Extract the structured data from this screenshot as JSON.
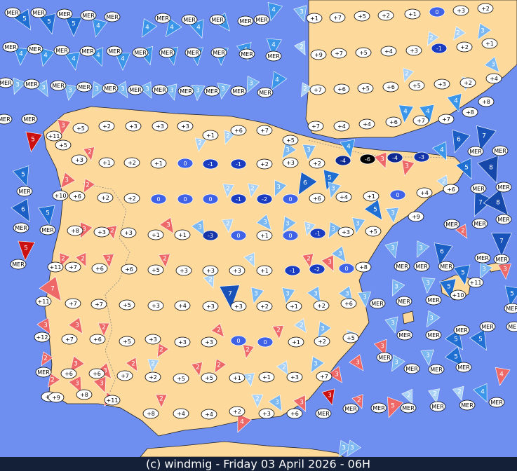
{
  "map": {
    "temperatures": [
      "MER",
      "MER",
      "MER",
      "MER",
      "MER",
      "MER",
      "MER",
      "MER",
      "MER",
      "MER",
      "+1",
      "+7",
      "+5",
      "+2",
      "+1",
      "0",
      "+3",
      "+2",
      "MER",
      "MER",
      "MER",
      "MER",
      "MER",
      "MER",
      "MER",
      "MER",
      "MER",
      "MER",
      "MER",
      "+9",
      "+7",
      "+5",
      "+4",
      "+3",
      "-1",
      "+2",
      "+1",
      "MER",
      "MER",
      "MER",
      "MER",
      "MER",
      "MER",
      "MER",
      "MER",
      "MER",
      "MER",
      "MER",
      "+7",
      "+6",
      "+5",
      "+6",
      "+5",
      "+3",
      "+2",
      "+4",
      "+8",
      "+8",
      "MER",
      "MER",
      "+11",
      "+5",
      "+10",
      "MER",
      "MER",
      "MER",
      "MER",
      "+5",
      "+2",
      "+3",
      "+3",
      "+3",
      "+1",
      "+6",
      "+7",
      "+5",
      "+7",
      "+4",
      "+4",
      "+6",
      "+7",
      "+7",
      "+3",
      "+1",
      "+2",
      "+1",
      "0",
      "-1",
      "-1",
      "+2",
      "+3",
      "+2",
      "-4",
      "-6",
      "-4",
      "-3",
      "+6",
      "+2",
      "+2",
      "0",
      "0",
      "0",
      "-1",
      "-2",
      "0",
      "+6",
      "+4",
      "+1",
      "0",
      "+4",
      "+6",
      "+8",
      "+3",
      "+3",
      "+1",
      "+1",
      "-3",
      "0",
      "+1",
      "0",
      "-1",
      "+3",
      "+5",
      "+9",
      "+11",
      "+7",
      "+6",
      "+6",
      "+5",
      "+3",
      "+3",
      "+3",
      "+1",
      "-1",
      "-2",
      "0",
      "+8",
      "+11",
      "+7",
      "+7",
      "+5",
      "+3",
      "+4",
      "+3",
      "+3",
      "+2",
      "+1",
      "+2",
      "+6",
      "+12",
      "+7",
      "+6",
      "+5",
      "+3",
      "+3",
      "+3",
      "0",
      "0",
      "+1",
      "+2",
      "+5",
      "MER",
      "+6",
      "+6",
      "+7",
      "+2",
      "+5",
      "+5",
      "+1",
      "+1",
      "+3",
      "+7",
      "+6",
      "+9",
      "+8",
      "+11",
      "+8",
      "+4",
      "+4",
      "+2",
      "+3",
      "+6",
      "MER",
      "MER",
      "MER",
      "MER",
      "MER",
      "MER",
      "MER",
      "MER",
      "MER",
      "MER",
      "MER",
      "MER",
      "MER",
      "MER",
      "MER",
      "MER",
      "MER",
      "MER",
      "MER",
      "MER",
      "+11",
      "+10",
      "MER",
      "MER",
      "MER",
      "MER",
      "MER",
      "MER",
      "MER",
      "MER",
      "MER",
      "MER",
      "MER",
      "MER"
    ],
    "cold_palette": {
      "0": "#3f62e6",
      "-1": "#1a3cc0",
      "-2": "#1a3cc0",
      "-3": "#1434a8",
      "-4": "#0e2a90",
      "-6": "#000000"
    },
    "winds": [
      5,
      5,
      5,
      4,
      4,
      4,
      4,
      4,
      4,
      3,
      4,
      4,
      4,
      4,
      4,
      4,
      4,
      4,
      4,
      4,
      4,
      2,
      2,
      2,
      3,
      3,
      3,
      3,
      3,
      3,
      3,
      3,
      3,
      3,
      3,
      4,
      2,
      2,
      2,
      3,
      3,
      5,
      2,
      2,
      2,
      3,
      3,
      5,
      6,
      3,
      4,
      3,
      3,
      4,
      4,
      4,
      6,
      7,
      8,
      5,
      4,
      2,
      7,
      8,
      7,
      2,
      5,
      6,
      5,
      5,
      3,
      2,
      2,
      2,
      3,
      2,
      3,
      3,
      5,
      3,
      3,
      3,
      2,
      3,
      3,
      3,
      2,
      2,
      2,
      2,
      2,
      2,
      2,
      2,
      3,
      3,
      3,
      3,
      6,
      5,
      3,
      3,
      7,
      3,
      3,
      5,
      5,
      3,
      7,
      3,
      3,
      3,
      3,
      3,
      3,
      2,
      2,
      2,
      2,
      2,
      2,
      3,
      2,
      3,
      3,
      3,
      5,
      5,
      2,
      3,
      3,
      2,
      2,
      2,
      2,
      2,
      2,
      3,
      3,
      3,
      3,
      5,
      4,
      3,
      2,
      3,
      3,
      2,
      2,
      2,
      3,
      3,
      3,
      2,
      5,
      2,
      2,
      2,
      4,
      4,
      3,
      3
    ],
    "wind_palette": {
      "cool": {
        "2": "#a9d2f6",
        "3": "#7cb8f2",
        "4": "#3b96ea",
        "5": "#1f70d2",
        "6": "#1b5ec4",
        "7": "#1852b8",
        "8": "#1648aa"
      },
      "warm": "#ee6868",
      "hot": "#cc1010"
    }
  },
  "footer": "(c) windmig - Friday 03 April 2026 - 06H"
}
